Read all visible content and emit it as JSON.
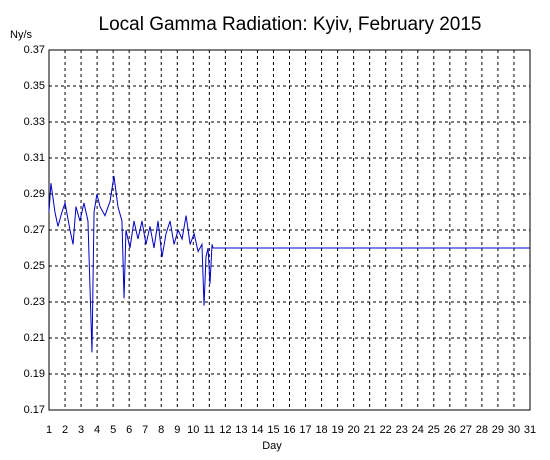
{
  "chart_data": {
    "type": "line",
    "title": "Local Gamma Radiation: Kyiv, February 2015",
    "y_label": "Ny/s",
    "x_label": "Day",
    "color": "#0000c8",
    "grid": true,
    "x": [
      1.0,
      1.12,
      1.37,
      1.56,
      1.81,
      2.0,
      2.31,
      2.5,
      2.68,
      2.93,
      3.18,
      3.43,
      3.68,
      3.81,
      3.99,
      4.18,
      4.49,
      4.81,
      5.05,
      5.3,
      5.55,
      5.68,
      5.8,
      6.05,
      6.3,
      6.55,
      6.8,
      7.05,
      7.3,
      7.55,
      7.8,
      8.05,
      8.3,
      8.55,
      8.8,
      9.05,
      9.3,
      9.55,
      9.8,
      10.05,
      10.3,
      10.54,
      10.67,
      10.79,
      10.92,
      11.04,
      11.17,
      11.23,
      31
    ],
    "values": [
      0.28,
      0.296,
      0.28,
      0.272,
      0.28,
      0.285,
      0.27,
      0.262,
      0.283,
      0.275,
      0.285,
      0.275,
      0.202,
      0.28,
      0.29,
      0.283,
      0.278,
      0.286,
      0.3,
      0.283,
      0.275,
      0.232,
      0.27,
      0.26,
      0.275,
      0.265,
      0.275,
      0.262,
      0.272,
      0.26,
      0.275,
      0.255,
      0.268,
      0.275,
      0.262,
      0.27,
      0.265,
      0.278,
      0.262,
      0.268,
      0.258,
      0.262,
      0.228,
      0.255,
      0.26,
      0.24,
      0.262,
      0.26,
      0.26
    ],
    "xlim": [
      1,
      31
    ],
    "xticks": [
      1,
      2,
      3,
      4,
      5,
      6,
      7,
      8,
      9,
      10,
      11,
      12,
      13,
      14,
      15,
      16,
      17,
      18,
      19,
      20,
      21,
      22,
      23,
      24,
      25,
      26,
      27,
      28,
      29,
      30,
      31
    ],
    "ylim": [
      0.17,
      0.37
    ],
    "yticks": [
      0.17,
      0.19,
      0.21,
      0.23,
      0.25,
      0.27,
      0.29,
      0.31,
      0.33,
      0.35,
      0.37
    ]
  }
}
